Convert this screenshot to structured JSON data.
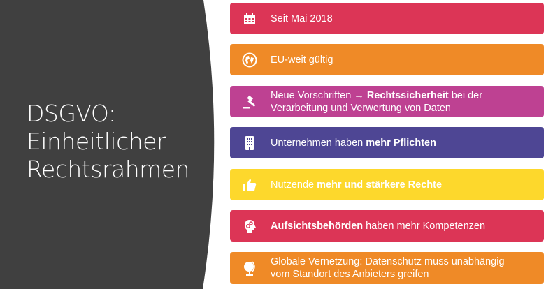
{
  "title_lines": [
    "DSGVO:",
    "Einheitlicher",
    "Rechtsrahmen"
  ],
  "colors": {
    "dark": "#404040",
    "red": "#DC3556",
    "orange": "#EF8A27",
    "magenta": "#BE4192",
    "purple": "#4E4694",
    "yellow": "#FDD82C"
  },
  "items": [
    {
      "icon": "calendar-icon",
      "color": "#DC3556",
      "segments": [
        {
          "t": "Seit Mai 2018",
          "b": false
        }
      ]
    },
    {
      "icon": "globe-icon",
      "color": "#EF8A27",
      "segments": [
        {
          "t": "EU-weit gültig",
          "b": false
        }
      ]
    },
    {
      "icon": "gavel-icon",
      "color": "#BE4192",
      "segments": [
        {
          "t": "Neue Vorschriften → ",
          "b": false
        },
        {
          "t": "Rechtssicherheit",
          "b": true
        },
        {
          "t": " bei der Verarbeitung und Verwertung von Daten",
          "b": false
        }
      ]
    },
    {
      "icon": "building-icon",
      "color": "#4E4694",
      "segments": [
        {
          "t": "Unternehmen haben ",
          "b": false
        },
        {
          "t": "mehr Pflichten",
          "b": true
        }
      ]
    },
    {
      "icon": "thumbs-up-icon",
      "color": "#FDD82C",
      "segments": [
        {
          "t": "Nutzende ",
          "b": false
        },
        {
          "t": "mehr und stärkere Rechte",
          "b": true
        }
      ]
    },
    {
      "icon": "head-gears-icon",
      "color": "#DC3556",
      "segments": [
        {
          "t": "Aufsichtsbehörden",
          "b": true
        },
        {
          "t": " haben mehr Kompetenzen",
          "b": false
        }
      ]
    },
    {
      "icon": "desk-globe-icon",
      "color": "#EF8A27",
      "segments": [
        {
          "t": "Globale Vernetzung: Datenschutz muss unabhängig vom Standort des Anbieters greifen",
          "b": false
        }
      ]
    }
  ]
}
